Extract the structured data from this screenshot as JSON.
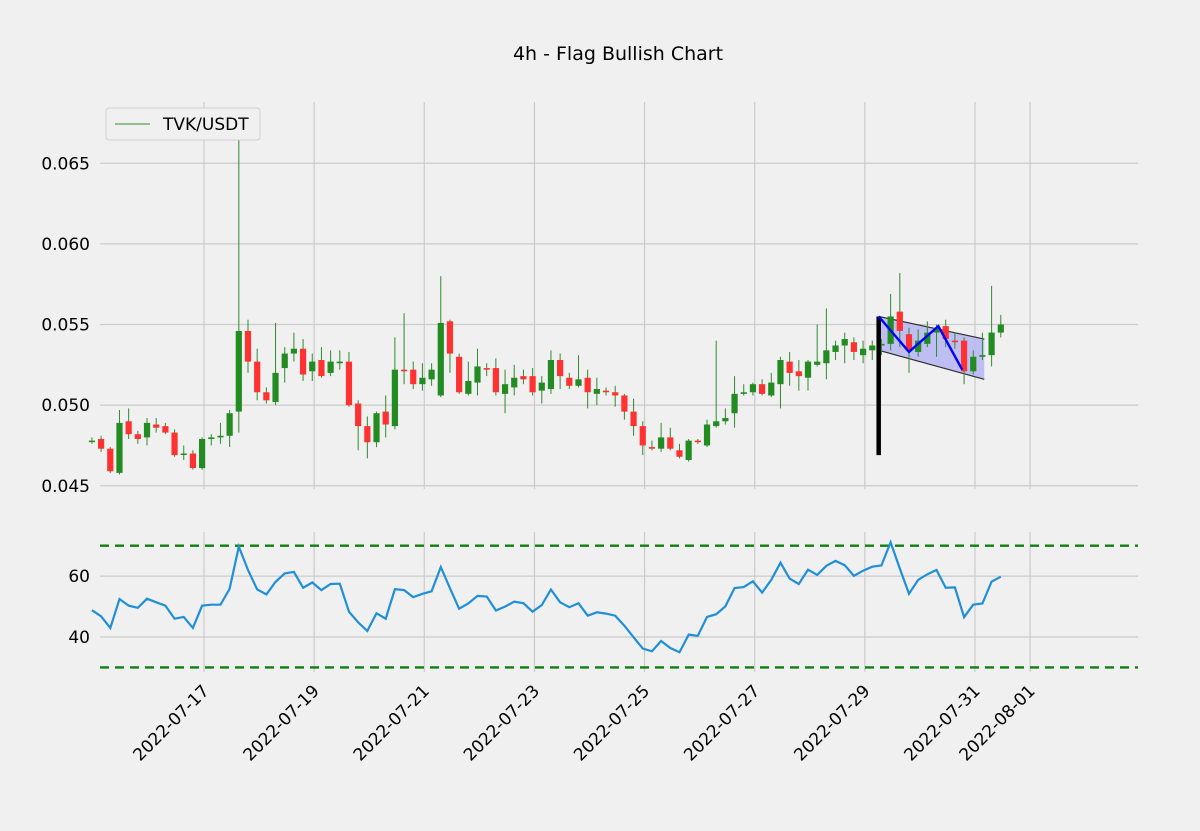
{
  "chart_data": [
    {
      "type": "candlestick",
      "title": "4h - Flag Bullish Chart",
      "legend": {
        "label": "TVK/USDT",
        "placement": "top-left"
      },
      "colors": {
        "up": "#228b22",
        "down": "#ff3131",
        "wick": "#2e8b2e",
        "pole": "#000000",
        "flag_line": "#0000ff",
        "flag_fill": "#b8b8f2",
        "flag_edge": "#303030"
      },
      "ylim": [
        0.0448,
        0.0688
      ],
      "yticks": [
        "0.045",
        "0.050",
        "0.055",
        "0.060",
        "0.065"
      ],
      "ytick_values": [
        0.045,
        0.05,
        0.055,
        0.06,
        0.065
      ],
      "x_start": "2022-07-16",
      "x_step_days": 0.1667,
      "xticks": [
        "2022-07-17",
        "2022-07-19",
        "2022-07-21",
        "2022-07-23",
        "2022-07-25",
        "2022-07-27",
        "2022-07-29",
        "2022-07-31",
        "2022-08-01"
      ],
      "xtick_dates": [
        "2022-07-17",
        "2022-07-19",
        "2022-07-21",
        "2022-07-23",
        "2022-07-25",
        "2022-07-27",
        "2022-07-29",
        "2022-07-31",
        "2022-08-01"
      ],
      "grid": true,
      "candles": [
        [
          0.0478,
          0.048,
          0.0476,
          0.0478
        ],
        [
          0.0479,
          0.0481,
          0.0471,
          0.0473
        ],
        [
          0.0473,
          0.0474,
          0.0458,
          0.0459
        ],
        [
          0.0458,
          0.0497,
          0.0457,
          0.0489
        ],
        [
          0.049,
          0.0498,
          0.0479,
          0.0482
        ],
        [
          0.0482,
          0.0484,
          0.0476,
          0.0479
        ],
        [
          0.048,
          0.0492,
          0.0475,
          0.0489
        ],
        [
          0.0488,
          0.0492,
          0.0483,
          0.0486
        ],
        [
          0.0487,
          0.0489,
          0.0482,
          0.0483
        ],
        [
          0.0483,
          0.0485,
          0.0468,
          0.0469
        ],
        [
          0.047,
          0.0475,
          0.0466,
          0.047
        ],
        [
          0.047,
          0.0472,
          0.046,
          0.0461
        ],
        [
          0.0461,
          0.048,
          0.046,
          0.0479
        ],
        [
          0.0479,
          0.0482,
          0.0475,
          0.048
        ],
        [
          0.048,
          0.0489,
          0.0476,
          0.0481
        ],
        [
          0.0481,
          0.0497,
          0.0474,
          0.0495
        ],
        [
          0.0496,
          0.068,
          0.0483,
          0.0546
        ],
        [
          0.0546,
          0.0553,
          0.052,
          0.0527
        ],
        [
          0.0527,
          0.0535,
          0.0503,
          0.0508
        ],
        [
          0.0508,
          0.0511,
          0.0501,
          0.0503
        ],
        [
          0.0502,
          0.0551,
          0.05,
          0.052
        ],
        [
          0.0523,
          0.0536,
          0.0514,
          0.0532
        ],
        [
          0.0532,
          0.0545,
          0.0527,
          0.0535
        ],
        [
          0.0535,
          0.0541,
          0.0515,
          0.0519
        ],
        [
          0.0521,
          0.0532,
          0.0515,
          0.0527
        ],
        [
          0.0528,
          0.0536,
          0.0517,
          0.0518
        ],
        [
          0.052,
          0.0534,
          0.0518,
          0.0527
        ],
        [
          0.0526,
          0.0534,
          0.0522,
          0.0527
        ],
        [
          0.0527,
          0.0533,
          0.0499,
          0.05
        ],
        [
          0.0501,
          0.0503,
          0.0472,
          0.0487
        ],
        [
          0.0487,
          0.0493,
          0.0467,
          0.0477
        ],
        [
          0.0477,
          0.0496,
          0.0474,
          0.0495
        ],
        [
          0.0496,
          0.0506,
          0.048,
          0.0488
        ],
        [
          0.0487,
          0.0542,
          0.0485,
          0.0522
        ],
        [
          0.0522,
          0.0557,
          0.0513,
          0.0521
        ],
        [
          0.0522,
          0.0527,
          0.051,
          0.0513
        ],
        [
          0.0513,
          0.0526,
          0.0509,
          0.0517
        ],
        [
          0.0516,
          0.0526,
          0.0512,
          0.0522
        ],
        [
          0.0506,
          0.058,
          0.0505,
          0.0551
        ],
        [
          0.0552,
          0.0553,
          0.052,
          0.0532
        ],
        [
          0.053,
          0.0532,
          0.0507,
          0.0508
        ],
        [
          0.0507,
          0.0527,
          0.0506,
          0.0515
        ],
        [
          0.0514,
          0.0535,
          0.0506,
          0.0524
        ],
        [
          0.0523,
          0.0526,
          0.0518,
          0.0522
        ],
        [
          0.0523,
          0.0529,
          0.0506,
          0.0508
        ],
        [
          0.0507,
          0.0522,
          0.0495,
          0.0513
        ],
        [
          0.0511,
          0.0525,
          0.0506,
          0.0517
        ],
        [
          0.0518,
          0.0522,
          0.0513,
          0.0516
        ],
        [
          0.0518,
          0.0523,
          0.0506,
          0.0508
        ],
        [
          0.0509,
          0.0518,
          0.0501,
          0.0514
        ],
        [
          0.051,
          0.0534,
          0.0507,
          0.0528
        ],
        [
          0.0528,
          0.0532,
          0.051,
          0.0518
        ],
        [
          0.0517,
          0.052,
          0.051,
          0.0512
        ],
        [
          0.0512,
          0.0531,
          0.0511,
          0.0516
        ],
        [
          0.0517,
          0.0522,
          0.0498,
          0.0508
        ],
        [
          0.0507,
          0.0517,
          0.05,
          0.051
        ],
        [
          0.0509,
          0.0511,
          0.0506,
          0.0508
        ],
        [
          0.0508,
          0.0512,
          0.0499,
          0.0506
        ],
        [
          0.0506,
          0.0507,
          0.0491,
          0.0496
        ],
        [
          0.0496,
          0.0504,
          0.0481,
          0.0487
        ],
        [
          0.0487,
          0.049,
          0.0469,
          0.0475
        ],
        [
          0.0474,
          0.0478,
          0.0472,
          0.0473
        ],
        [
          0.0473,
          0.0489,
          0.0471,
          0.048
        ],
        [
          0.048,
          0.0486,
          0.0472,
          0.0473
        ],
        [
          0.0472,
          0.0476,
          0.0467,
          0.0468
        ],
        [
          0.0466,
          0.0479,
          0.0465,
          0.0478
        ],
        [
          0.0478,
          0.0479,
          0.0476,
          0.0477
        ],
        [
          0.0475,
          0.0491,
          0.0474,
          0.0488
        ],
        [
          0.0487,
          0.054,
          0.0486,
          0.049
        ],
        [
          0.049,
          0.0498,
          0.0488,
          0.0492
        ],
        [
          0.0495,
          0.0518,
          0.0486,
          0.0507
        ],
        [
          0.0507,
          0.0513,
          0.0506,
          0.0508
        ],
        [
          0.0508,
          0.0514,
          0.0506,
          0.0513
        ],
        [
          0.0513,
          0.0516,
          0.0506,
          0.0507
        ],
        [
          0.0506,
          0.052,
          0.0505,
          0.0514
        ],
        [
          0.0513,
          0.053,
          0.0498,
          0.0528
        ],
        [
          0.0527,
          0.0533,
          0.0512,
          0.052
        ],
        [
          0.0521,
          0.0528,
          0.0509,
          0.0518
        ],
        [
          0.0517,
          0.0528,
          0.0509,
          0.0527
        ],
        [
          0.0525,
          0.055,
          0.0524,
          0.0527
        ],
        [
          0.0526,
          0.056,
          0.0516,
          0.0534
        ],
        [
          0.0533,
          0.054,
          0.0528,
          0.0537
        ],
        [
          0.0537,
          0.0545,
          0.0526,
          0.0541
        ],
        [
          0.0539,
          0.0542,
          0.0528,
          0.0533
        ],
        [
          0.0531,
          0.054,
          0.0526,
          0.0535
        ],
        [
          0.0534,
          0.054,
          0.0528,
          0.0537
        ],
        [
          0.0537,
          0.0541,
          0.0531,
          0.0538
        ],
        [
          0.0538,
          0.0569,
          0.0534,
          0.0555
        ],
        [
          0.0558,
          0.0582,
          0.0536,
          0.0546
        ],
        [
          0.0544,
          0.0548,
          0.052,
          0.0534
        ],
        [
          0.0533,
          0.0547,
          0.053,
          0.054
        ],
        [
          0.0538,
          0.0552,
          0.0536,
          0.0545
        ],
        [
          0.0545,
          0.055,
          0.053,
          0.0548
        ],
        [
          0.0549,
          0.0553,
          0.0536,
          0.0541
        ],
        [
          0.054,
          0.0545,
          0.0535,
          0.0539
        ],
        [
          0.054,
          0.0542,
          0.0513,
          0.0521
        ],
        [
          0.0521,
          0.0534,
          0.0519,
          0.053
        ],
        [
          0.053,
          0.0545,
          0.0528,
          0.0531
        ],
        [
          0.0531,
          0.0574,
          0.0524,
          0.0545
        ],
        [
          0.0545,
          0.0556,
          0.0542,
          0.055
        ]
      ],
      "flag": {
        "pole": {
          "index": 85.7,
          "low": 0.0469,
          "high": 0.0555
        },
        "upper": [
          [
            85.7,
            0.0555
          ],
          [
            97.2,
            0.0541
          ]
        ],
        "lower": [
          [
            85.7,
            0.0534
          ],
          [
            97.2,
            0.0516
          ]
        ],
        "zigzag": [
          [
            85.7,
            0.0555
          ],
          [
            89.0,
            0.0533
          ],
          [
            92.2,
            0.0549
          ],
          [
            94.8,
            0.0522
          ]
        ]
      }
    },
    {
      "type": "line",
      "series": [
        {
          "values": [
            48.8,
            46.8,
            43.0,
            52.5,
            50.3,
            49.6,
            52.6,
            51.4,
            50.3,
            46.0,
            46.6,
            43.0,
            50.3,
            50.6,
            50.6,
            55.8,
            69.7,
            62.0,
            55.6,
            54.0,
            58.1,
            60.9,
            61.4,
            56.2,
            57.9,
            55.4,
            57.4,
            57.5,
            48.3,
            44.8,
            42.0,
            47.8,
            46.0,
            55.7,
            55.4,
            53.1,
            54.2,
            55.0,
            63.0,
            56.0,
            49.3,
            51.0,
            53.5,
            53.3,
            48.7,
            50.0,
            51.6,
            51.1,
            48.3,
            50.5,
            55.6,
            51.4,
            49.8,
            51.1,
            47.0,
            48.1,
            47.7,
            47.0,
            43.7,
            39.9,
            36.2,
            35.3,
            38.7,
            36.4,
            35.0,
            40.8,
            40.4,
            46.6,
            47.5,
            50.1,
            56.1,
            56.4,
            58.3,
            54.6,
            58.8,
            64.4,
            59.2,
            57.4,
            62.1,
            60.4,
            63.4,
            65.0,
            63.6,
            60.1,
            61.8,
            63.1,
            63.5,
            71.1,
            62.5,
            54.2,
            58.8,
            60.6,
            62.0,
            56.2,
            56.3,
            46.5,
            50.6,
            51.0,
            58.2,
            59.8
          ]
        }
      ],
      "ylim": [
        28.5,
        74.5
      ],
      "yticks": [
        "40",
        "60"
      ],
      "ytick_values": [
        40,
        60
      ],
      "colors": {
        "line": "#1f8fd8",
        "bounds": "#0f7f0f"
      },
      "bounds": [
        70,
        30
      ],
      "grid": true
    }
  ]
}
